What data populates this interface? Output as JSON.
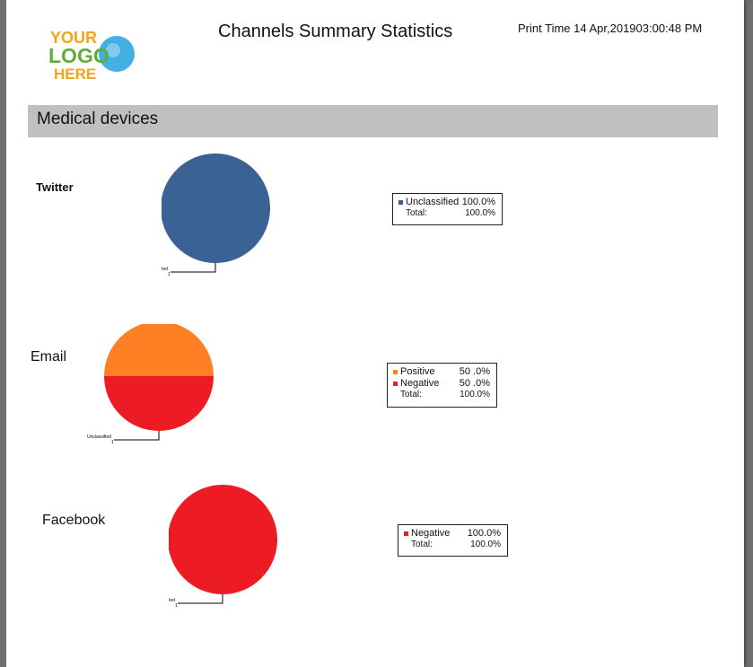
{
  "header": {
    "logo_text": [
      "YOUR",
      "LOGO",
      "HERE"
    ],
    "title": "Channels Summary Statistics",
    "print_time": "Print Time 14 Apr,201903:00:48 PM"
  },
  "section": {
    "title": "Medical devices"
  },
  "colors": {
    "unclassified": "#3b6294",
    "positive": "#ff7f24",
    "negative": "#ed1c24",
    "section_bar": "#c0c0c0"
  },
  "chart_data": [
    {
      "type": "pie",
      "title": "Twitter",
      "slices": [
        {
          "label": "Unclassified",
          "value": 100.0,
          "color": "#3b6294"
        }
      ],
      "pie_label": "Unclassified",
      "pie_label_sub": "1",
      "legend": {
        "rows": [
          {
            "name": "Unclassified",
            "value": "100.0%",
            "color": "#3b6294"
          }
        ],
        "total_label": "Total:",
        "total_value": "100.0%"
      }
    },
    {
      "type": "pie",
      "title": "Email",
      "slices": [
        {
          "label": "Positive",
          "value": 50.0,
          "color": "#ff7f24"
        },
        {
          "label": "Negative",
          "value": 50.0,
          "color": "#ed1c24"
        }
      ],
      "pie_label": "Unclassified",
      "pie_label_sub": "1",
      "legend": {
        "rows": [
          {
            "name": "Positive",
            "value": "50 .0%",
            "color": "#ff7f24"
          },
          {
            "name": "Negative",
            "value": "50 .0%",
            "color": "#ed1c24"
          }
        ],
        "total_label": "Total:",
        "total_value": "100.0%"
      }
    },
    {
      "type": "pie",
      "title": "Facebook",
      "slices": [
        {
          "label": "Negative",
          "value": 100.0,
          "color": "#ed1c24"
        }
      ],
      "pie_label": "Unclassified",
      "pie_label_sub": "1",
      "legend": {
        "rows": [
          {
            "name": "Negative",
            "value": "100.0%",
            "color": "#ed1c24"
          }
        ],
        "total_label": "Total:",
        "total_value": "100.0%"
      }
    }
  ]
}
